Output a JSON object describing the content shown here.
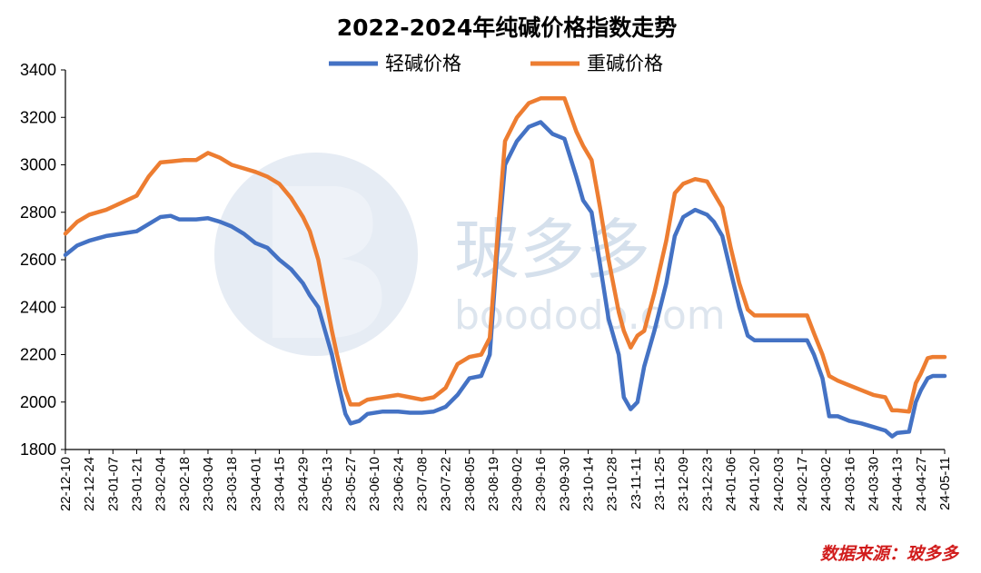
{
  "chart_data": {
    "type": "line",
    "title": "2022-2024年纯碱价格指数走势",
    "ylim": [
      1800,
      3400
    ],
    "yticks": [
      1800,
      2000,
      2200,
      2400,
      2600,
      2800,
      3000,
      3200,
      3400
    ],
    "xlim": [
      "2022-12-10",
      "2024-05-11"
    ],
    "x_tick_labels": [
      "22-12-10",
      "22-12-24",
      "23-01-07",
      "23-01-21",
      "23-02-04",
      "23-02-18",
      "23-03-04",
      "23-03-18",
      "23-04-01",
      "23-04-15",
      "23-04-29",
      "23-05-13",
      "23-05-27",
      "23-06-10",
      "23-06-24",
      "23-07-08",
      "23-07-22",
      "23-08-05",
      "23-08-19",
      "23-09-02",
      "23-09-16",
      "23-09-30",
      "23-10-14",
      "23-10-28",
      "23-11-11",
      "23-11-25",
      "23-12-09",
      "23-12-23",
      "24-01-06",
      "24-01-20",
      "24-02-03",
      "24-02-17",
      "24-03-02",
      "24-03-16",
      "24-03-30",
      "24-04-13",
      "24-04-27",
      "24-05-11"
    ],
    "legend_position": "top-center",
    "grid": false,
    "series": [
      {
        "name": "轻碱价格",
        "color": "#4472c4",
        "points": [
          [
            "2022-12-10",
            2620
          ],
          [
            "2022-12-17",
            2660
          ],
          [
            "2022-12-24",
            2680
          ],
          [
            "2023-01-03",
            2700
          ],
          [
            "2023-01-12",
            2710
          ],
          [
            "2023-01-21",
            2720
          ],
          [
            "2023-01-28",
            2750
          ],
          [
            "2023-02-04",
            2780
          ],
          [
            "2023-02-10",
            2785
          ],
          [
            "2023-02-15",
            2770
          ],
          [
            "2023-02-25",
            2770
          ],
          [
            "2023-03-04",
            2775
          ],
          [
            "2023-03-11",
            2760
          ],
          [
            "2023-03-18",
            2740
          ],
          [
            "2023-03-25",
            2710
          ],
          [
            "2023-04-01",
            2670
          ],
          [
            "2023-04-08",
            2650
          ],
          [
            "2023-04-15",
            2600
          ],
          [
            "2023-04-22",
            2560
          ],
          [
            "2023-04-29",
            2500
          ],
          [
            "2023-05-03",
            2450
          ],
          [
            "2023-05-08",
            2400
          ],
          [
            "2023-05-12",
            2300
          ],
          [
            "2023-05-16",
            2200
          ],
          [
            "2023-05-19",
            2100
          ],
          [
            "2023-05-24",
            1950
          ],
          [
            "2023-05-27",
            1910
          ],
          [
            "2023-06-01",
            1920
          ],
          [
            "2023-06-06",
            1950
          ],
          [
            "2023-06-15",
            1960
          ],
          [
            "2023-06-24",
            1960
          ],
          [
            "2023-07-01",
            1955
          ],
          [
            "2023-07-08",
            1955
          ],
          [
            "2023-07-15",
            1960
          ],
          [
            "2023-07-22",
            1980
          ],
          [
            "2023-07-29",
            2030
          ],
          [
            "2023-08-05",
            2100
          ],
          [
            "2023-08-12",
            2110
          ],
          [
            "2023-08-17",
            2200
          ],
          [
            "2023-08-21",
            2600
          ],
          [
            "2023-08-26",
            3000
          ],
          [
            "2023-09-02",
            3100
          ],
          [
            "2023-09-09",
            3160
          ],
          [
            "2023-09-16",
            3180
          ],
          [
            "2023-09-23",
            3130
          ],
          [
            "2023-09-30",
            3110
          ],
          [
            "2023-10-07",
            2950
          ],
          [
            "2023-10-11",
            2850
          ],
          [
            "2023-10-16",
            2800
          ],
          [
            "2023-10-21",
            2580
          ],
          [
            "2023-10-26",
            2350
          ],
          [
            "2023-11-01",
            2200
          ],
          [
            "2023-11-04",
            2020
          ],
          [
            "2023-11-08",
            1970
          ],
          [
            "2023-11-12",
            2000
          ],
          [
            "2023-11-16",
            2150
          ],
          [
            "2023-11-22",
            2300
          ],
          [
            "2023-11-29",
            2500
          ],
          [
            "2023-12-04",
            2700
          ],
          [
            "2023-12-09",
            2780
          ],
          [
            "2023-12-16",
            2810
          ],
          [
            "2023-12-23",
            2790
          ],
          [
            "2023-12-27",
            2760
          ],
          [
            "2024-01-01",
            2700
          ],
          [
            "2024-01-06",
            2550
          ],
          [
            "2024-01-11",
            2400
          ],
          [
            "2024-01-16",
            2280
          ],
          [
            "2024-01-20",
            2260
          ],
          [
            "2024-02-03",
            2260
          ],
          [
            "2024-02-17",
            2260
          ],
          [
            "2024-02-20",
            2260
          ],
          [
            "2024-02-24",
            2200
          ],
          [
            "2024-02-29",
            2100
          ],
          [
            "2024-03-04",
            1940
          ],
          [
            "2024-03-09",
            1940
          ],
          [
            "2024-03-16",
            1920
          ],
          [
            "2024-03-23",
            1910
          ],
          [
            "2024-03-30",
            1895
          ],
          [
            "2024-04-06",
            1880
          ],
          [
            "2024-04-10",
            1855
          ],
          [
            "2024-04-13",
            1870
          ],
          [
            "2024-04-20",
            1875
          ],
          [
            "2024-04-24",
            2000
          ],
          [
            "2024-04-27",
            2050
          ],
          [
            "2024-05-01",
            2100
          ],
          [
            "2024-05-04",
            2110
          ],
          [
            "2024-05-11",
            2110
          ]
        ]
      },
      {
        "name": "重碱价格",
        "color": "#ed7d31",
        "points": [
          [
            "2022-12-10",
            2710
          ],
          [
            "2022-12-17",
            2760
          ],
          [
            "2022-12-24",
            2790
          ],
          [
            "2023-01-03",
            2810
          ],
          [
            "2023-01-12",
            2840
          ],
          [
            "2023-01-21",
            2870
          ],
          [
            "2023-01-28",
            2950
          ],
          [
            "2023-02-04",
            3010
          ],
          [
            "2023-02-11",
            3015
          ],
          [
            "2023-02-18",
            3020
          ],
          [
            "2023-02-25",
            3020
          ],
          [
            "2023-03-04",
            3050
          ],
          [
            "2023-03-11",
            3030
          ],
          [
            "2023-03-18",
            3000
          ],
          [
            "2023-03-25",
            2985
          ],
          [
            "2023-04-01",
            2970
          ],
          [
            "2023-04-08",
            2950
          ],
          [
            "2023-04-15",
            2920
          ],
          [
            "2023-04-22",
            2860
          ],
          [
            "2023-04-29",
            2780
          ],
          [
            "2023-05-03",
            2720
          ],
          [
            "2023-05-08",
            2600
          ],
          [
            "2023-05-12",
            2450
          ],
          [
            "2023-05-16",
            2300
          ],
          [
            "2023-05-19",
            2200
          ],
          [
            "2023-05-24",
            2050
          ],
          [
            "2023-05-27",
            1990
          ],
          [
            "2023-06-01",
            1990
          ],
          [
            "2023-06-06",
            2010
          ],
          [
            "2023-06-15",
            2020
          ],
          [
            "2023-06-24",
            2030
          ],
          [
            "2023-07-01",
            2020
          ],
          [
            "2023-07-08",
            2010
          ],
          [
            "2023-07-15",
            2020
          ],
          [
            "2023-07-22",
            2060
          ],
          [
            "2023-07-29",
            2160
          ],
          [
            "2023-08-05",
            2190
          ],
          [
            "2023-08-12",
            2200
          ],
          [
            "2023-08-17",
            2270
          ],
          [
            "2023-08-21",
            2650
          ],
          [
            "2023-08-26",
            3100
          ],
          [
            "2023-09-02",
            3200
          ],
          [
            "2023-09-09",
            3260
          ],
          [
            "2023-09-16",
            3280
          ],
          [
            "2023-09-23",
            3280
          ],
          [
            "2023-09-30",
            3280
          ],
          [
            "2023-10-07",
            3140
          ],
          [
            "2023-10-11",
            3080
          ],
          [
            "2023-10-16",
            3020
          ],
          [
            "2023-10-21",
            2820
          ],
          [
            "2023-10-26",
            2600
          ],
          [
            "2023-11-01",
            2380
          ],
          [
            "2023-11-04",
            2300
          ],
          [
            "2023-11-08",
            2230
          ],
          [
            "2023-11-12",
            2280
          ],
          [
            "2023-11-16",
            2300
          ],
          [
            "2023-11-22",
            2460
          ],
          [
            "2023-11-29",
            2680
          ],
          [
            "2023-12-04",
            2880
          ],
          [
            "2023-12-09",
            2920
          ],
          [
            "2023-12-16",
            2940
          ],
          [
            "2023-12-23",
            2930
          ],
          [
            "2023-12-27",
            2880
          ],
          [
            "2024-01-01",
            2820
          ],
          [
            "2024-01-06",
            2650
          ],
          [
            "2024-01-11",
            2500
          ],
          [
            "2024-01-16",
            2390
          ],
          [
            "2024-01-20",
            2365
          ],
          [
            "2024-02-03",
            2365
          ],
          [
            "2024-02-17",
            2365
          ],
          [
            "2024-02-20",
            2365
          ],
          [
            "2024-02-24",
            2290
          ],
          [
            "2024-02-29",
            2200
          ],
          [
            "2024-03-04",
            2110
          ],
          [
            "2024-03-09",
            2090
          ],
          [
            "2024-03-16",
            2070
          ],
          [
            "2024-03-23",
            2050
          ],
          [
            "2024-03-30",
            2030
          ],
          [
            "2024-04-06",
            2020
          ],
          [
            "2024-04-10",
            1965
          ],
          [
            "2024-04-13",
            1965
          ],
          [
            "2024-04-20",
            1960
          ],
          [
            "2024-04-24",
            2080
          ],
          [
            "2024-04-27",
            2120
          ],
          [
            "2024-05-01",
            2185
          ],
          [
            "2024-05-04",
            2190
          ],
          [
            "2024-05-11",
            2190
          ]
        ]
      }
    ]
  },
  "watermark": {
    "text": "玻多多",
    "url": "boododo.com"
  },
  "source_note": "数据来源：玻多多"
}
